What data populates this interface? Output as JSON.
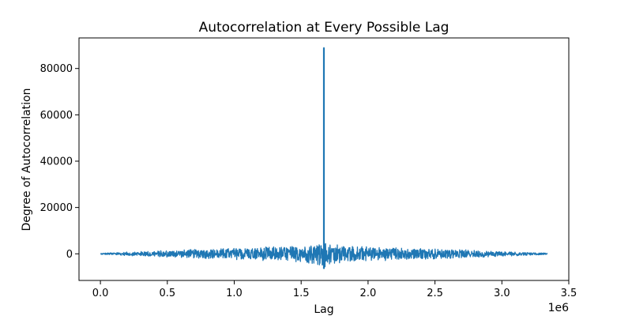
{
  "chart_data": {
    "type": "line",
    "title": "Autocorrelation at Every Possible Lag",
    "xlabel": "Lag",
    "ylabel": "Degree of Autocorrelation",
    "x_offset_label": "1e6",
    "xlim": [
      -160000,
      3500000
    ],
    "ylim": [
      -11500,
      93200
    ],
    "x_ticks": [
      0,
      500000,
      1000000,
      1500000,
      2000000,
      2500000,
      3000000,
      3500000
    ],
    "x_tick_labels": [
      "0.0",
      "0.5",
      "1.0",
      "1.5",
      "2.0",
      "2.5",
      "3.0",
      "3.5"
    ],
    "y_ticks": [
      0,
      20000,
      40000,
      60000,
      80000
    ],
    "y_tick_labels": [
      "0",
      "20000",
      "40000",
      "60000",
      "80000"
    ],
    "grid": false,
    "series": [
      {
        "color": "#1f77b4",
        "x_range": [
          0,
          3340000
        ],
        "peak": {
          "x": 1670000,
          "y": 89000
        },
        "envelope": [
          {
            "x": 0,
            "amp": 300
          },
          {
            "x": 500000,
            "amp": 1500
          },
          {
            "x": 1000000,
            "amp": 2500
          },
          {
            "x": 1500000,
            "amp": 3500
          },
          {
            "x": 1650000,
            "amp": 5000
          },
          {
            "x": 1670000,
            "amp": 6500
          },
          {
            "x": 1690000,
            "amp": 5000
          },
          {
            "x": 1840000,
            "amp": 3500
          },
          {
            "x": 2340000,
            "amp": 2500
          },
          {
            "x": 2840000,
            "amp": 1500
          },
          {
            "x": 3340000,
            "amp": 300
          }
        ]
      }
    ]
  }
}
